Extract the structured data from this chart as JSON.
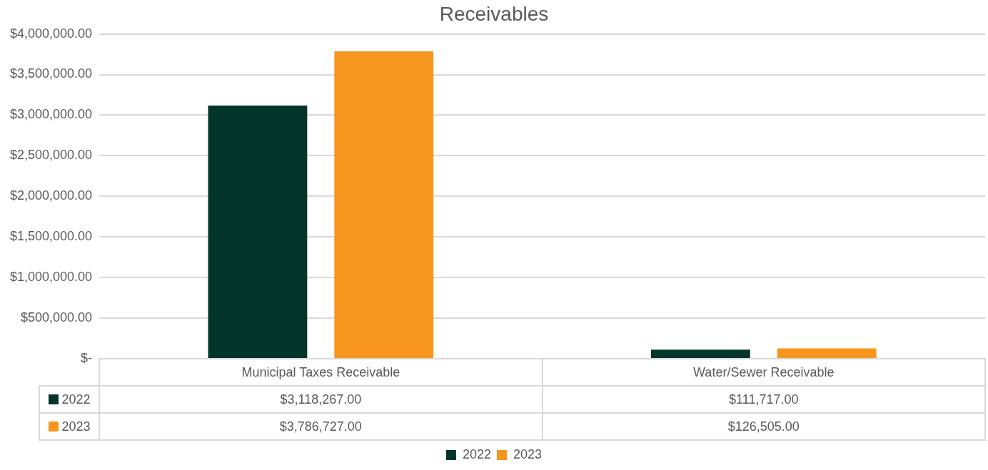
{
  "chart_data": {
    "type": "bar",
    "title": "Receivables",
    "categories": [
      "Municipal Taxes Receivable",
      "Water/Sewer Receivable"
    ],
    "series": [
      {
        "name": "2022",
        "color": "#03352a",
        "values": [
          3118267,
          111717
        ],
        "value_labels": [
          "$3,118,267.00",
          "$111,717.00"
        ]
      },
      {
        "name": "2023",
        "color": "#f6961e",
        "values": [
          3786727,
          126505
        ],
        "value_labels": [
          "$3,786,727.00",
          "$126,505.00"
        ]
      }
    ],
    "ylim": [
      0,
      4000000
    ],
    "yticks": [
      {
        "value": 0,
        "label": "$-"
      },
      {
        "value": 500000,
        "label": "$500,000.00"
      },
      {
        "value": 1000000,
        "label": "$1,000,000.00"
      },
      {
        "value": 1500000,
        "label": "$1,500,000.00"
      },
      {
        "value": 2000000,
        "label": "$2,000,000.00"
      },
      {
        "value": 2500000,
        "label": "$2,500,000.00"
      },
      {
        "value": 3000000,
        "label": "$3,000,000.00"
      },
      {
        "value": 3500000,
        "label": "$3,500,000.00"
      },
      {
        "value": 4000000,
        "label": "$4,000,000.00"
      }
    ],
    "grid": "y",
    "legend": "bottom"
  }
}
